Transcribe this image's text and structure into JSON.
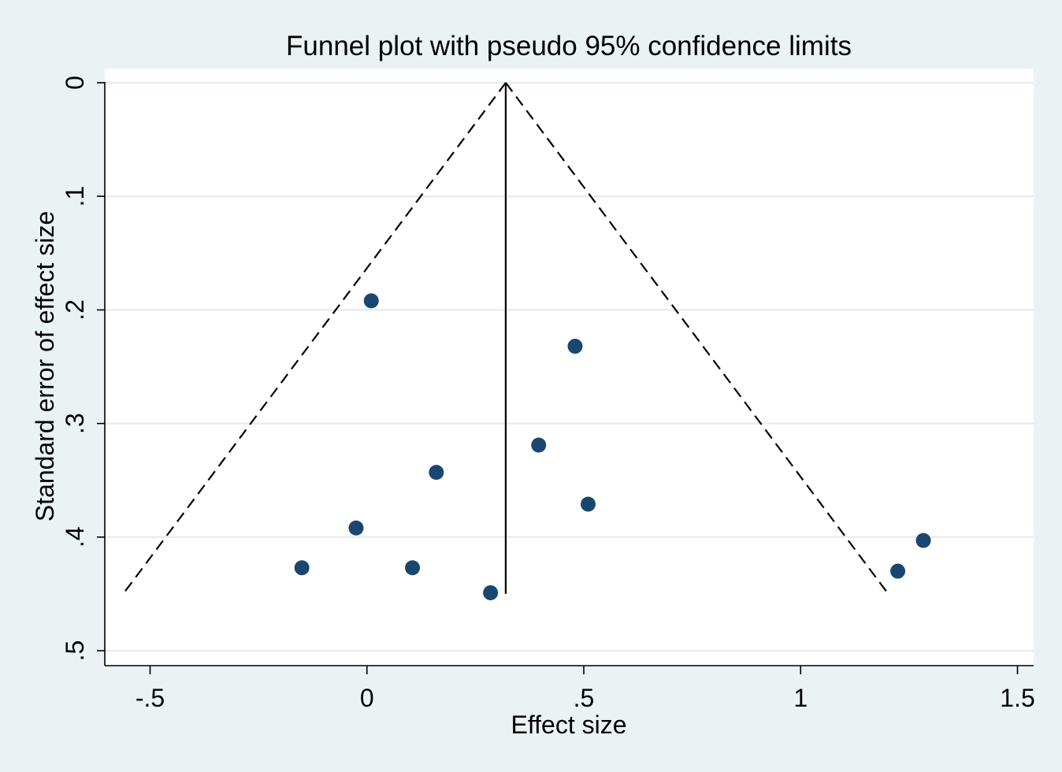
{
  "chart_data": {
    "type": "scatter",
    "title": "Funnel plot with pseudo 95% confidence limits",
    "xlabel": "Effect size",
    "ylabel": "Standard error of effect size",
    "xlim": [
      -0.6,
      1.535
    ],
    "ylim": [
      0.5,
      0.0
    ],
    "y_reversed": true,
    "x_ticks": [
      -0.5,
      0,
      0.5,
      1,
      1.5
    ],
    "x_tick_labels": [
      "-.5",
      "0",
      ".5",
      "1",
      "1.5"
    ],
    "y_ticks": [
      0,
      0.1,
      0.2,
      0.3,
      0.4,
      0.5
    ],
    "y_tick_labels": [
      "0",
      ".1",
      ".2",
      ".3",
      ".4",
      ".5"
    ],
    "grid": true,
    "pooled_effect": 0.32,
    "funnel_max_se": 0.45,
    "points": [
      {
        "x": 0.01,
        "y": 0.192
      },
      {
        "x": 0.48,
        "y": 0.232
      },
      {
        "x": 0.396,
        "y": 0.319
      },
      {
        "x": 0.16,
        "y": 0.343
      },
      {
        "x": 0.51,
        "y": 0.371
      },
      {
        "x": -0.025,
        "y": 0.392
      },
      {
        "x": -0.15,
        "y": 0.427
      },
      {
        "x": 0.105,
        "y": 0.427
      },
      {
        "x": 0.285,
        "y": 0.449
      },
      {
        "x": 1.283,
        "y": 0.403
      },
      {
        "x": 1.224,
        "y": 0.43
      }
    ],
    "colors": {
      "background": "#eaf2f3",
      "plot_area": "#ffffff",
      "grid": "#e6eef0",
      "marker": "#1a476f",
      "lines": "#000000"
    }
  }
}
